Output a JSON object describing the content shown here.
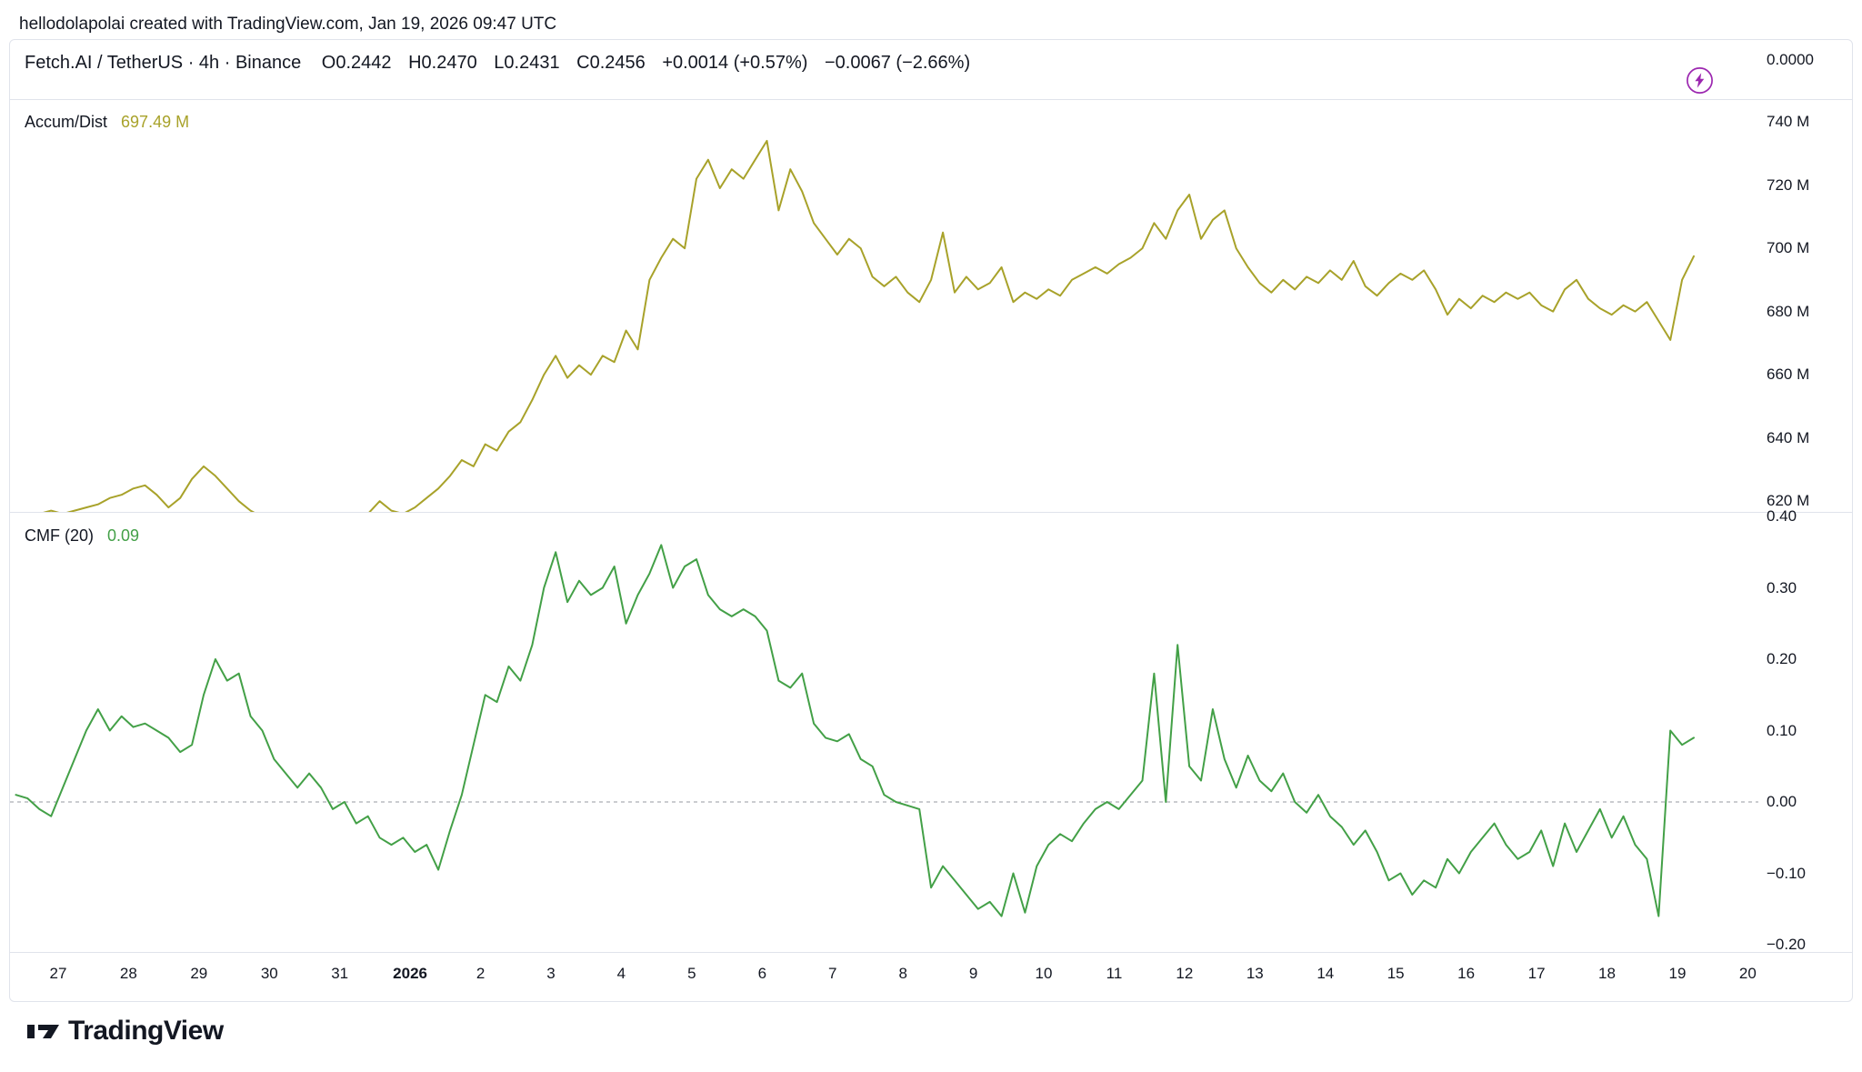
{
  "attribution": {
    "text": "hellodolapolai created with TradingView.com, Jan 19, 2026 09:47 UTC"
  },
  "symbol_bar": {
    "title": "Fetch.AI / TetherUS · 4h · Binance",
    "open": "O0.2442",
    "high": "H0.2470",
    "low": "L0.2431",
    "close": "C0.2456",
    "change": "+0.0014 (+0.57%)",
    "change_secondary": "−0.0067 (−2.66%)"
  },
  "price_scale": {
    "top_tick": "0.0000"
  },
  "icons": {
    "flash": {
      "name": "lightning-bolt-icon",
      "color": "#9C27B0"
    }
  },
  "logo": {
    "text": "TradingView"
  },
  "colors": {
    "accum_dist_line": "#a8a22a",
    "cmf_line": "#43a047",
    "flash_purple": "#9C27B0",
    "separator": "#e0e3eb",
    "zero_line": "#9598a1",
    "text": "#131722"
  },
  "chart_data": {
    "type": "line",
    "title": "Fetch.AI / TetherUS 4h indicators",
    "x_axis": {
      "day_min": -0.684,
      "day_max": 24.15,
      "labels": [
        {
          "text": "27",
          "day": 0
        },
        {
          "text": "28",
          "day": 1
        },
        {
          "text": "29",
          "day": 2
        },
        {
          "text": "30",
          "day": 3
        },
        {
          "text": "31",
          "day": 4
        },
        {
          "text": "2026",
          "day": 5,
          "bold": true
        },
        {
          "text": "2",
          "day": 6
        },
        {
          "text": "3",
          "day": 7
        },
        {
          "text": "4",
          "day": 8
        },
        {
          "text": "5",
          "day": 9
        },
        {
          "text": "6",
          "day": 10
        },
        {
          "text": "7",
          "day": 11
        },
        {
          "text": "8",
          "day": 12
        },
        {
          "text": "9",
          "day": 13
        },
        {
          "text": "10",
          "day": 14
        },
        {
          "text": "11",
          "day": 15
        },
        {
          "text": "12",
          "day": 16
        },
        {
          "text": "13",
          "day": 17
        },
        {
          "text": "14",
          "day": 18
        },
        {
          "text": "15",
          "day": 19
        },
        {
          "text": "16",
          "day": 20
        },
        {
          "text": "17",
          "day": 21
        },
        {
          "text": "18",
          "day": 22
        },
        {
          "text": "19",
          "day": 23
        },
        {
          "text": "20",
          "day": 24
        }
      ]
    },
    "panes": [
      {
        "slug": "accum-dist",
        "name": "Accum/Dist",
        "value_label": "697.49 M",
        "color": "#a8a22a",
        "ylim": [
          616.6,
          747.2
        ],
        "unit": "millions",
        "y_ticks": [
          {
            "text": "740 M",
            "value": 740
          },
          {
            "text": "720 M",
            "value": 720
          },
          {
            "text": "700 M",
            "value": 700
          },
          {
            "text": "680 M",
            "value": 680
          },
          {
            "text": "660 M",
            "value": 660
          },
          {
            "text": "640 M",
            "value": 640
          },
          {
            "text": "620 M",
            "value": 620
          }
        ],
        "series": {
          "x_start": -0.6,
          "x_step": 0.1666667,
          "values": [
            616,
            615,
            616,
            617,
            616,
            617,
            618,
            619,
            621,
            622,
            624,
            625,
            622,
            618,
            621,
            627,
            631,
            628,
            624,
            620,
            617,
            615,
            614,
            615,
            613,
            614,
            612,
            613,
            614,
            615,
            616,
            620,
            617,
            616,
            618,
            621,
            624,
            628,
            633,
            631,
            638,
            636,
            642,
            645,
            652,
            660,
            666,
            659,
            663,
            660,
            666,
            664,
            674,
            668,
            690,
            697,
            703,
            700,
            722,
            728,
            719,
            725,
            722,
            728,
            734,
            712,
            725,
            718,
            708,
            703,
            698,
            703,
            700,
            691,
            688,
            691,
            686,
            683,
            690,
            705,
            686,
            691,
            687,
            689,
            694,
            683,
            686,
            684,
            687,
            685,
            690,
            692,
            694,
            692,
            695,
            697,
            700,
            708,
            703,
            712,
            717,
            703,
            709,
            712,
            700,
            694,
            689,
            686,
            690,
            687,
            691,
            689,
            693,
            690,
            696,
            688,
            685,
            689,
            692,
            690,
            693,
            687,
            679,
            684,
            681,
            685,
            683,
            686,
            684,
            686,
            682,
            680,
            687,
            690,
            684,
            681,
            679,
            682,
            680,
            683,
            677,
            671,
            690,
            697.49
          ]
        }
      },
      {
        "slug": "cmf",
        "name": "CMF (20)",
        "value_label": "0.09",
        "color": "#43a047",
        "ylim": [
          -0.2102,
          0.4064
        ],
        "zero_line": 0,
        "y_ticks": [
          {
            "text": "0.40",
            "value": 0.4
          },
          {
            "text": "0.30",
            "value": 0.3
          },
          {
            "text": "0.20",
            "value": 0.2
          },
          {
            "text": "0.10",
            "value": 0.1
          },
          {
            "text": "0.00",
            "value": 0.0
          },
          {
            "text": "−0.10",
            "value": -0.1
          },
          {
            "text": "−0.20",
            "value": -0.2
          }
        ],
        "series": {
          "x_start": -0.6,
          "x_step": 0.1666667,
          "values": [
            0.01,
            0.005,
            -0.01,
            -0.02,
            0.02,
            0.06,
            0.1,
            0.13,
            0.1,
            0.12,
            0.105,
            0.11,
            0.1,
            0.09,
            0.07,
            0.08,
            0.15,
            0.2,
            0.17,
            0.18,
            0.12,
            0.1,
            0.06,
            0.04,
            0.02,
            0.04,
            0.02,
            -0.01,
            0.0,
            -0.03,
            -0.02,
            -0.05,
            -0.06,
            -0.05,
            -0.07,
            -0.06,
            -0.095,
            -0.04,
            0.01,
            0.08,
            0.15,
            0.14,
            0.19,
            0.17,
            0.22,
            0.3,
            0.35,
            0.28,
            0.31,
            0.29,
            0.3,
            0.33,
            0.25,
            0.29,
            0.32,
            0.36,
            0.3,
            0.33,
            0.34,
            0.29,
            0.27,
            0.26,
            0.27,
            0.26,
            0.24,
            0.17,
            0.16,
            0.18,
            0.11,
            0.09,
            0.085,
            0.095,
            0.06,
            0.05,
            0.01,
            0.0,
            -0.005,
            -0.01,
            -0.12,
            -0.09,
            -0.11,
            -0.13,
            -0.15,
            -0.14,
            -0.16,
            -0.1,
            -0.155,
            -0.09,
            -0.06,
            -0.045,
            -0.055,
            -0.03,
            -0.01,
            0.0,
            -0.01,
            0.01,
            0.03,
            0.18,
            0.0,
            0.22,
            0.05,
            0.03,
            0.13,
            0.06,
            0.02,
            0.065,
            0.03,
            0.015,
            0.04,
            0.0,
            -0.015,
            0.01,
            -0.02,
            -0.035,
            -0.06,
            -0.04,
            -0.07,
            -0.11,
            -0.1,
            -0.13,
            -0.11,
            -0.12,
            -0.08,
            -0.1,
            -0.07,
            -0.05,
            -0.03,
            -0.06,
            -0.08,
            -0.07,
            -0.04,
            -0.09,
            -0.03,
            -0.07,
            -0.04,
            -0.01,
            -0.05,
            -0.02,
            -0.06,
            -0.08,
            -0.16,
            0.1,
            0.08,
            0.09
          ]
        }
      }
    ]
  }
}
